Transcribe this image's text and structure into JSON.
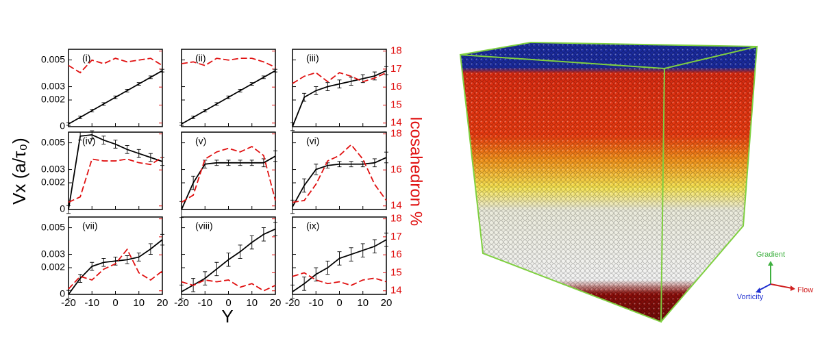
{
  "figure": {
    "xlabel": "Y",
    "ylabel": "Vx (a/τ₀)",
    "y2label": "Icosahedron %"
  },
  "image": {
    "axes": {
      "gradient": "Gradient",
      "vorticity": "Vorticity",
      "flow": "Flow"
    }
  },
  "chart_data": [
    {
      "type": "line",
      "title": "(i)",
      "x": [
        -20,
        -15,
        -10,
        -5,
        0,
        5,
        10,
        15,
        20
      ],
      "xlim": [
        -20,
        20
      ],
      "xticks": [
        -20,
        -10,
        0,
        10,
        20
      ],
      "ylim": [
        0,
        0.0058
      ],
      "yticks": [
        0,
        0.002,
        0.003,
        0.005
      ],
      "y2lim": [
        13.8,
        18.1
      ],
      "y2ticks": [
        14,
        15,
        16,
        17,
        18
      ],
      "series": [
        {
          "color": "#000000",
          "values": [
            0.0002,
            0.0007,
            0.0012,
            0.0017,
            0.0022,
            0.0027,
            0.0032,
            0.0037,
            0.0042
          ],
          "errors": [
            0.0001,
            0.0001,
            0.0001,
            0.0001,
            0.0001,
            0.0001,
            0.0001,
            0.0001,
            0.0001
          ]
        },
        {
          "color": "#e01010",
          "linestyle": "dashed",
          "axis": "y2",
          "values": [
            17.2,
            16.8,
            17.5,
            17.3,
            17.6,
            17.4,
            17.5,
            17.6,
            17.2
          ]
        }
      ]
    },
    {
      "type": "line",
      "title": "(ii)",
      "x": [
        -20,
        -15,
        -10,
        -5,
        0,
        5,
        10,
        15,
        20
      ],
      "xlim": [
        -20,
        20
      ],
      "xticks": [
        -20,
        -10,
        0,
        10,
        20
      ],
      "ylim": [
        0,
        0.0058
      ],
      "yticks": [
        0,
        0.002,
        0.003,
        0.005
      ],
      "y2lim": [
        13.8,
        18.1
      ],
      "y2ticks": [
        14,
        15,
        16,
        17,
        18
      ],
      "series": [
        {
          "color": "#000000",
          "values": [
            0.0002,
            0.0007,
            0.0012,
            0.0017,
            0.0022,
            0.0027,
            0.0032,
            0.0037,
            0.0042
          ],
          "errors": [
            0.0001,
            0.0001,
            0.0001,
            0.0001,
            0.0001,
            0.0001,
            0.0001,
            0.0001,
            0.0001
          ]
        },
        {
          "color": "#e01010",
          "linestyle": "dashed",
          "axis": "y2",
          "values": [
            17.3,
            17.4,
            17.2,
            17.6,
            17.5,
            17.6,
            17.6,
            17.4,
            17.1
          ]
        }
      ]
    },
    {
      "type": "line",
      "title": "(iii)",
      "x": [
        -20,
        -15,
        -10,
        -5,
        0,
        5,
        10,
        15,
        20
      ],
      "xlim": [
        -20,
        20
      ],
      "xticks": [
        -20,
        -10,
        0,
        10,
        20
      ],
      "ylim": [
        0,
        0.0058
      ],
      "yticks": [
        0,
        0.002,
        0.003,
        0.005
      ],
      "y2lim": [
        13.8,
        18.1
      ],
      "y2ticks": [
        14,
        15,
        16,
        17,
        18
      ],
      "series": [
        {
          "color": "#000000",
          "values": [
            0,
            0.0022,
            0.0027,
            0.003,
            0.0032,
            0.0034,
            0.0036,
            0.0038,
            0.0042
          ],
          "errors": [
            0.0003,
            0.0003,
            0.0003,
            0.0003,
            0.0003,
            0.0003,
            0.0003,
            0.0003,
            0.0003
          ]
        },
        {
          "color": "#e01010",
          "linestyle": "dashed",
          "axis": "y2",
          "values": [
            16.2,
            16.6,
            16.8,
            16.3,
            16.8,
            16.6,
            16.3,
            16.5,
            16.8
          ]
        }
      ]
    },
    {
      "type": "line",
      "title": "(iv)",
      "x": [
        -20,
        -15,
        -10,
        -5,
        0,
        5,
        10,
        15,
        20
      ],
      "xlim": [
        -20,
        20
      ],
      "xticks": [
        -20,
        -10,
        0,
        10,
        20
      ],
      "ylim": [
        0,
        0.0058
      ],
      "yticks": [
        0,
        0.002,
        0.003,
        0.005
      ],
      "y2lim": [
        13.8,
        18.1
      ],
      "y2ticks": [
        14,
        16,
        18
      ],
      "series": [
        {
          "color": "#000000",
          "values": [
            0,
            0.0055,
            0.0056,
            0.0052,
            0.0049,
            0.0045,
            0.0042,
            0.0039,
            0.0036
          ],
          "errors": [
            0.0003,
            0.0003,
            0.0003,
            0.0003,
            0.0003,
            0.0003,
            0.0003,
            0.0003,
            0.0003
          ]
        },
        {
          "color": "#e01010",
          "linestyle": "dashed",
          "axis": "y2",
          "values": [
            14.2,
            14.5,
            16.6,
            16.5,
            16.5,
            16.6,
            16.4,
            16.3,
            16.7
          ]
        }
      ]
    },
    {
      "type": "line",
      "title": "(v)",
      "x": [
        -20,
        -15,
        -10,
        -5,
        0,
        5,
        10,
        15,
        20
      ],
      "xlim": [
        -20,
        20
      ],
      "xticks": [
        -20,
        -10,
        0,
        10,
        20
      ],
      "ylim": [
        0,
        0.0058
      ],
      "yticks": [
        0,
        0.002,
        0.003,
        0.005
      ],
      "y2lim": [
        13.8,
        18.1
      ],
      "y2ticks": [
        14,
        16,
        18
      ],
      "series": [
        {
          "color": "#000000",
          "values": [
            0,
            0.002,
            0.0034,
            0.0035,
            0.0035,
            0.0035,
            0.0035,
            0.0035,
            0.004
          ],
          "errors": [
            0.0006,
            0.0005,
            0.0003,
            0.0002,
            0.0002,
            0.0002,
            0.0002,
            0.0003,
            0.0004
          ]
        },
        {
          "color": "#e01010",
          "linestyle": "dashed",
          "axis": "y2",
          "values": [
            14.2,
            14.6,
            16.6,
            17.0,
            17.2,
            17.0,
            17.3,
            16.8,
            14.3
          ]
        }
      ]
    },
    {
      "type": "line",
      "title": "(vi)",
      "x": [
        -20,
        -15,
        -10,
        -5,
        0,
        5,
        10,
        15,
        20
      ],
      "xlim": [
        -20,
        20
      ],
      "xticks": [
        -20,
        -10,
        0,
        10,
        20
      ],
      "ylim": [
        0,
        0.0058
      ],
      "yticks": [
        0,
        0.002,
        0.003,
        0.005
      ],
      "y2lim": [
        13.8,
        18.1
      ],
      "y2ticks": [
        14,
        16,
        18
      ],
      "series": [
        {
          "color": "#000000",
          "values": [
            0.0002,
            0.0018,
            0.003,
            0.0033,
            0.0034,
            0.0034,
            0.0034,
            0.0035,
            0.0039
          ],
          "errors": [
            0.0005,
            0.0005,
            0.0004,
            0.0002,
            0.0002,
            0.0002,
            0.0002,
            0.0003,
            0.0004
          ]
        },
        {
          "color": "#e01010",
          "linestyle": "dashed",
          "axis": "y2",
          "values": [
            14.2,
            14.3,
            15.2,
            16.5,
            16.8,
            17.4,
            16.6,
            15.2,
            14.3
          ]
        }
      ]
    },
    {
      "type": "line",
      "title": "(vii)",
      "x": [
        -20,
        -15,
        -10,
        -5,
        0,
        5,
        10,
        15,
        20
      ],
      "xlim": [
        -20,
        20
      ],
      "xticks": [
        -20,
        -10,
        0,
        10,
        20
      ],
      "ylim": [
        0,
        0.0058
      ],
      "yticks": [
        0,
        0.002,
        0.003,
        0.005
      ],
      "y2lim": [
        13.8,
        18.1
      ],
      "y2ticks": [
        14,
        15,
        16,
        17,
        18
      ],
      "series": [
        {
          "color": "#000000",
          "values": [
            0,
            0.0012,
            0.0021,
            0.0024,
            0.0025,
            0.0026,
            0.0028,
            0.0034,
            0.0041
          ],
          "errors": [
            0.0003,
            0.0003,
            0.0003,
            0.0003,
            0.0003,
            0.0003,
            0.0003,
            0.0004,
            0.0004
          ]
        },
        {
          "color": "#e01010",
          "linestyle": "dashed",
          "axis": "y2",
          "values": [
            14.1,
            14.8,
            14.6,
            15.2,
            15.5,
            16.3,
            15.0,
            14.6,
            15.1
          ]
        }
      ]
    },
    {
      "type": "line",
      "title": "(viii)",
      "x": [
        -20,
        -15,
        -10,
        -5,
        0,
        5,
        10,
        15,
        20
      ],
      "xlim": [
        -20,
        20
      ],
      "xticks": [
        -20,
        -10,
        0,
        10,
        20
      ],
      "ylim": [
        0,
        0.0058
      ],
      "yticks": [
        0,
        0.002,
        0.003,
        0.005
      ],
      "y2lim": [
        13.8,
        18.1
      ],
      "y2ticks": [
        14,
        15,
        16,
        17,
        18
      ],
      "series": [
        {
          "color": "#000000",
          "values": [
            0.0002,
            0.0007,
            0.0012,
            0.0019,
            0.0026,
            0.0032,
            0.0039,
            0.0045,
            0.0049
          ],
          "errors": [
            0.0005,
            0.0005,
            0.0005,
            0.0005,
            0.0005,
            0.0005,
            0.0005,
            0.0005,
            0.0005
          ]
        },
        {
          "color": "#e01010",
          "linestyle": "dashed",
          "axis": "y2",
          "values": [
            14.5,
            14.3,
            14.6,
            14.5,
            14.6,
            14.2,
            14.4,
            14.0,
            14.3
          ]
        }
      ]
    },
    {
      "type": "line",
      "title": "(ix)",
      "x": [
        -20,
        -15,
        -10,
        -5,
        0,
        5,
        10,
        15,
        20
      ],
      "xlim": [
        -20,
        20
      ],
      "xticks": [
        -20,
        -10,
        0,
        10,
        20
      ],
      "ylim": [
        0,
        0.0058
      ],
      "yticks": [
        0,
        0.002,
        0.003,
        0.005
      ],
      "y2lim": [
        13.8,
        18.1
      ],
      "y2ticks": [
        14,
        15,
        16,
        17,
        18
      ],
      "series": [
        {
          "color": "#000000",
          "values": [
            0.0002,
            0.0008,
            0.0015,
            0.002,
            0.0027,
            0.003,
            0.0033,
            0.0036,
            0.0041
          ],
          "errors": [
            0.0005,
            0.0005,
            0.0005,
            0.0005,
            0.0005,
            0.0005,
            0.0005,
            0.0005,
            0.0005
          ]
        },
        {
          "color": "#e01010",
          "linestyle": "dashed",
          "axis": "y2",
          "values": [
            14.8,
            15.0,
            14.6,
            14.4,
            14.5,
            14.3,
            14.6,
            14.7,
            14.5
          ]
        }
      ]
    }
  ]
}
